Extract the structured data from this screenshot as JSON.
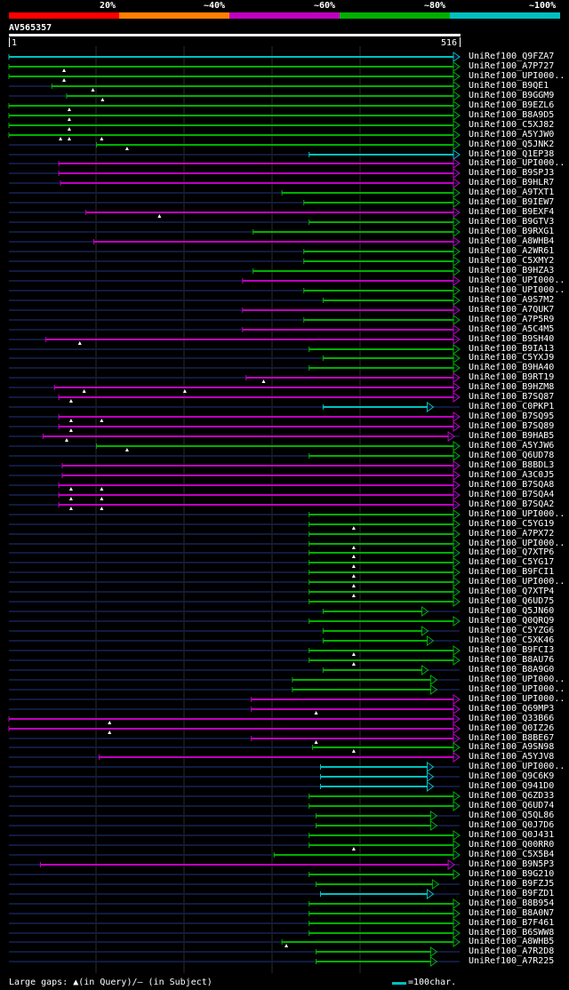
{
  "legend": {
    "labels": [
      "20%",
      "~40%",
      "~60%",
      "~80%",
      "~100%"
    ],
    "colors": [
      "#ff0000",
      "#ff8000",
      "#c000c0",
      "#00b000",
      "#00c0c0"
    ]
  },
  "query": {
    "name": "AV565357",
    "start": "1",
    "end": "516",
    "length": 516
  },
  "footer": {
    "gaps_text": "Large gaps: ▲(in Query)/– (in Subject)",
    "scale_text": "=100char."
  },
  "hits": [
    {
      "label": "UniRef100_Q9FZA7",
      "start": 1,
      "end": 516,
      "c": 4,
      "arrow": true,
      "gaps": []
    },
    {
      "label": "UniRef100_A7P727",
      "start": 1,
      "end": 516,
      "c": 3,
      "arrow": true,
      "gaps": [
        64
      ]
    },
    {
      "label": "UniRef100_UPI000..",
      "start": 1,
      "end": 516,
      "c": 3,
      "arrow": true,
      "gaps": [
        64
      ]
    },
    {
      "label": "UniRef100_B9QE1",
      "start": 50,
      "end": 516,
      "c": 3,
      "arrow": true,
      "gaps": [
        97
      ]
    },
    {
      "label": "UniRef100_B9GGM9",
      "start": 67,
      "end": 516,
      "c": 3,
      "arrow": true,
      "gaps": [
        108
      ]
    },
    {
      "label": "UniRef100_B9EZL6",
      "start": 1,
      "end": 516,
      "c": 3,
      "arrow": true,
      "gaps": [
        70
      ]
    },
    {
      "label": "UniRef100_B8A9D5",
      "start": 1,
      "end": 516,
      "c": 3,
      "arrow": true,
      "gaps": [
        70
      ]
    },
    {
      "label": "UniRef100_C5XJ82",
      "start": 1,
      "end": 516,
      "c": 3,
      "arrow": true,
      "gaps": [
        70
      ]
    },
    {
      "label": "UniRef100_A5YJW0",
      "start": 1,
      "end": 516,
      "c": 3,
      "arrow": true,
      "gaps": [
        60,
        70,
        107
      ]
    },
    {
      "label": "UniRef100_Q5JNK2",
      "start": 101,
      "end": 516,
      "c": 3,
      "arrow": true,
      "gaps": [
        136
      ]
    },
    {
      "label": "UniRef100_Q1EP38",
      "start": 344,
      "end": 516,
      "c": 4,
      "arrow": true,
      "gaps": []
    },
    {
      "label": "UniRef100_UPI000..",
      "start": 58,
      "end": 516,
      "c": 2,
      "arrow": true,
      "gaps": []
    },
    {
      "label": "UniRef100_B9SPJ3",
      "start": 58,
      "end": 516,
      "c": 2,
      "arrow": true,
      "gaps": []
    },
    {
      "label": "UniRef100_B9HLR7",
      "start": 60,
      "end": 516,
      "c": 2,
      "arrow": true,
      "gaps": []
    },
    {
      "label": "UniRef100_A9TXT1",
      "start": 313,
      "end": 516,
      "c": 3,
      "arrow": true,
      "gaps": []
    },
    {
      "label": "UniRef100_B9IEW7",
      "start": 338,
      "end": 516,
      "c": 3,
      "arrow": true,
      "gaps": []
    },
    {
      "label": "UniRef100_B9EXF4",
      "start": 89,
      "end": 516,
      "c": 2,
      "arrow": true,
      "gaps": [
        173
      ]
    },
    {
      "label": "UniRef100_B9GTV3",
      "start": 344,
      "end": 516,
      "c": 3,
      "arrow": true,
      "gaps": []
    },
    {
      "label": "UniRef100_B9RXG1",
      "start": 280,
      "end": 516,
      "c": 3,
      "arrow": true,
      "gaps": []
    },
    {
      "label": "UniRef100_A8WHB4",
      "start": 98,
      "end": 516,
      "c": 2,
      "arrow": true,
      "gaps": []
    },
    {
      "label": "UniRef100_A2WR61",
      "start": 338,
      "end": 516,
      "c": 3,
      "arrow": true,
      "gaps": []
    },
    {
      "label": "UniRef100_C5XMY2",
      "start": 338,
      "end": 516,
      "c": 3,
      "arrow": true,
      "gaps": []
    },
    {
      "label": "UniRef100_B9HZA3",
      "start": 280,
      "end": 516,
      "c": 3,
      "arrow": true,
      "gaps": []
    },
    {
      "label": "UniRef100_UPI000..",
      "start": 268,
      "end": 516,
      "c": 2,
      "arrow": true,
      "gaps": []
    },
    {
      "label": "UniRef100_UPI000..",
      "start": 338,
      "end": 516,
      "c": 3,
      "arrow": true,
      "gaps": []
    },
    {
      "label": "UniRef100_A9S7M2",
      "start": 360,
      "end": 516,
      "c": 3,
      "arrow": true,
      "gaps": []
    },
    {
      "label": "UniRef100_A7QUK7",
      "start": 268,
      "end": 516,
      "c": 2,
      "arrow": true,
      "gaps": []
    },
    {
      "label": "UniRef100_A7P5R9",
      "start": 338,
      "end": 516,
      "c": 3,
      "arrow": true,
      "gaps": []
    },
    {
      "label": "UniRef100_A5C4M5",
      "start": 268,
      "end": 516,
      "c": 2,
      "arrow": true,
      "gaps": []
    },
    {
      "label": "UniRef100_B9SH40",
      "start": 43,
      "end": 516,
      "c": 2,
      "arrow": true,
      "gaps": [
        82
      ]
    },
    {
      "label": "UniRef100_B9IA13",
      "start": 344,
      "end": 516,
      "c": 3,
      "arrow": true,
      "gaps": []
    },
    {
      "label": "UniRef100_C5YXJ9",
      "start": 360,
      "end": 516,
      "c": 3,
      "arrow": true,
      "gaps": []
    },
    {
      "label": "UniRef100_B9HA40",
      "start": 344,
      "end": 516,
      "c": 3,
      "arrow": true,
      "gaps": []
    },
    {
      "label": "UniRef100_B9RT19",
      "start": 272,
      "end": 516,
      "c": 2,
      "arrow": true,
      "gaps": [
        292
      ]
    },
    {
      "label": "UniRef100_B9HZM8",
      "start": 53,
      "end": 516,
      "c": 2,
      "arrow": true,
      "gaps": [
        87,
        202
      ]
    },
    {
      "label": "UniRef100_B7SQ87",
      "start": 58,
      "end": 516,
      "c": 2,
      "arrow": true,
      "gaps": [
        72
      ]
    },
    {
      "label": "UniRef100_C0PKP1",
      "start": 360,
      "end": 486,
      "c": 4,
      "arrow": true,
      "gaps": []
    },
    {
      "label": "UniRef100_B7SQ95",
      "start": 58,
      "end": 516,
      "c": 2,
      "arrow": true,
      "gaps": [
        72,
        107
      ]
    },
    {
      "label": "UniRef100_B7SQ89",
      "start": 58,
      "end": 516,
      "c": 2,
      "arrow": true,
      "gaps": [
        72
      ]
    },
    {
      "label": "UniRef100_B9HAB5",
      "start": 40,
      "end": 510,
      "c": 2,
      "arrow": true,
      "gaps": [
        67
      ]
    },
    {
      "label": "UniRef100_A5YJW6",
      "start": 101,
      "end": 516,
      "c": 3,
      "arrow": true,
      "gaps": [
        136
      ]
    },
    {
      "label": "UniRef100_Q6UD78",
      "start": 344,
      "end": 516,
      "c": 3,
      "arrow": true,
      "gaps": []
    },
    {
      "label": "UniRef100_B8BDL3",
      "start": 62,
      "end": 516,
      "c": 2,
      "arrow": true,
      "gaps": []
    },
    {
      "label": "UniRef100_A3C0J5",
      "start": 62,
      "end": 516,
      "c": 2,
      "arrow": true,
      "gaps": []
    },
    {
      "label": "UniRef100_B7SQA8",
      "start": 58,
      "end": 516,
      "c": 2,
      "arrow": true,
      "gaps": [
        72,
        107
      ]
    },
    {
      "label": "UniRef100_B7SQA4",
      "start": 58,
      "end": 516,
      "c": 2,
      "arrow": true,
      "gaps": [
        72,
        107
      ]
    },
    {
      "label": "UniRef100_B7SQA2",
      "start": 58,
      "end": 516,
      "c": 2,
      "arrow": true,
      "gaps": [
        72,
        107
      ]
    },
    {
      "label": "UniRef100_UPI000..",
      "start": 344,
      "end": 516,
      "c": 3,
      "arrow": true,
      "gaps": []
    },
    {
      "label": "UniRef100_C5YG19",
      "start": 344,
      "end": 516,
      "c": 3,
      "arrow": true,
      "gaps": [
        395
      ]
    },
    {
      "label": "UniRef100_A7PX72",
      "start": 344,
      "end": 516,
      "c": 3,
      "arrow": true,
      "gaps": []
    },
    {
      "label": "UniRef100_UPI000..",
      "start": 344,
      "end": 516,
      "c": 3,
      "arrow": true,
      "gaps": [
        395
      ]
    },
    {
      "label": "UniRef100_Q7XTP6",
      "start": 344,
      "end": 516,
      "c": 3,
      "arrow": true,
      "gaps": [
        395
      ]
    },
    {
      "label": "UniRef100_C5YG17",
      "start": 344,
      "end": 516,
      "c": 3,
      "arrow": true,
      "gaps": [
        395
      ]
    },
    {
      "label": "UniRef100_B9FCI1",
      "start": 344,
      "end": 516,
      "c": 3,
      "arrow": true,
      "gaps": [
        395
      ]
    },
    {
      "label": "UniRef100_UPI000..",
      "start": 344,
      "end": 516,
      "c": 3,
      "arrow": true,
      "gaps": [
        395
      ]
    },
    {
      "label": "UniRef100_Q7XTP4",
      "start": 344,
      "end": 516,
      "c": 3,
      "arrow": true,
      "gaps": [
        395
      ]
    },
    {
      "label": "UniRef100_Q6UD75",
      "start": 344,
      "end": 516,
      "c": 3,
      "arrow": true,
      "gaps": []
    },
    {
      "label": "UniRef100_Q5JN60",
      "start": 360,
      "end": 480,
      "c": 3,
      "arrow": true,
      "gaps": []
    },
    {
      "label": "UniRef100_Q0QRQ9",
      "start": 344,
      "end": 516,
      "c": 3,
      "arrow": true,
      "gaps": []
    },
    {
      "label": "UniRef100_C5YZG6",
      "start": 360,
      "end": 480,
      "c": 3,
      "arrow": true,
      "gaps": []
    },
    {
      "label": "UniRef100_C5XK46",
      "start": 360,
      "end": 486,
      "c": 3,
      "arrow": true,
      "gaps": []
    },
    {
      "label": "UniRef100_B9FCI3",
      "start": 344,
      "end": 516,
      "c": 3,
      "arrow": true,
      "gaps": [
        395
      ]
    },
    {
      "label": "UniRef100_B8AU76",
      "start": 344,
      "end": 516,
      "c": 3,
      "arrow": true,
      "gaps": [
        395
      ]
    },
    {
      "label": "UniRef100_B8A9G0",
      "start": 360,
      "end": 480,
      "c": 3,
      "arrow": true,
      "gaps": []
    },
    {
      "label": "UniRef100_UPI000..",
      "start": 325,
      "end": 490,
      "c": 3,
      "arrow": true,
      "gaps": []
    },
    {
      "label": "UniRef100_UPI000..",
      "start": 325,
      "end": 490,
      "c": 3,
      "arrow": true,
      "gaps": []
    },
    {
      "label": "UniRef100_UPI000..",
      "start": 278,
      "end": 516,
      "c": 2,
      "arrow": true,
      "gaps": []
    },
    {
      "label": "UniRef100_Q69MP3",
      "start": 278,
      "end": 516,
      "c": 2,
      "arrow": true,
      "gaps": [
        352
      ]
    },
    {
      "label": "UniRef100_Q33B66",
      "start": 1,
      "end": 516,
      "c": 2,
      "arrow": true,
      "gaps": [
        116
      ]
    },
    {
      "label": "UniRef100_Q0IZ26",
      "start": 1,
      "end": 516,
      "c": 2,
      "arrow": true,
      "gaps": [
        116
      ]
    },
    {
      "label": "UniRef100_B8BE67",
      "start": 278,
      "end": 516,
      "c": 2,
      "arrow": true,
      "gaps": [
        352
      ]
    },
    {
      "label": "UniRef100_A9SN98",
      "start": 348,
      "end": 516,
      "c": 3,
      "arrow": true,
      "gaps": [
        395
      ]
    },
    {
      "label": "UniRef100_A5YJV8",
      "start": 104,
      "end": 516,
      "c": 2,
      "arrow": true,
      "gaps": []
    },
    {
      "label": "UniRef100_UPI000..",
      "start": 357,
      "end": 486,
      "c": 4,
      "arrow": true,
      "gaps": []
    },
    {
      "label": "UniRef100_Q9C6K9",
      "start": 357,
      "end": 486,
      "c": 4,
      "arrow": true,
      "gaps": []
    },
    {
      "label": "UniRef100_Q941D0",
      "start": 357,
      "end": 486,
      "c": 4,
      "arrow": true,
      "gaps": []
    },
    {
      "label": "UniRef100_Q6ZD33",
      "start": 344,
      "end": 516,
      "c": 3,
      "arrow": true,
      "gaps": []
    },
    {
      "label": "UniRef100_Q6UD74",
      "start": 344,
      "end": 516,
      "c": 3,
      "arrow": true,
      "gaps": []
    },
    {
      "label": "UniRef100_Q5QL86",
      "start": 352,
      "end": 490,
      "c": 3,
      "arrow": true,
      "gaps": []
    },
    {
      "label": "UniRef100_Q0J7D6",
      "start": 352,
      "end": 490,
      "c": 3,
      "arrow": true,
      "gaps": []
    },
    {
      "label": "UniRef100_Q0J431",
      "start": 344,
      "end": 516,
      "c": 3,
      "arrow": true,
      "gaps": []
    },
    {
      "label": "UniRef100_Q00RR0",
      "start": 344,
      "end": 516,
      "c": 3,
      "arrow": true,
      "gaps": [
        395
      ]
    },
    {
      "label": "UniRef100_C5X5B4",
      "start": 304,
      "end": 516,
      "c": 3,
      "arrow": true,
      "gaps": []
    },
    {
      "label": "UniRef100_B9N5P3",
      "start": 37,
      "end": 510,
      "c": 2,
      "arrow": true,
      "gaps": []
    },
    {
      "label": "UniRef100_B9G210",
      "start": 344,
      "end": 516,
      "c": 3,
      "arrow": true,
      "gaps": []
    },
    {
      "label": "UniRef100_B9FZJ5",
      "start": 352,
      "end": 492,
      "c": 3,
      "arrow": true,
      "gaps": []
    },
    {
      "label": "UniRef100_B9FZD1",
      "start": 357,
      "end": 486,
      "c": 4,
      "arrow": true,
      "gaps": []
    },
    {
      "label": "UniRef100_B8B954",
      "start": 344,
      "end": 516,
      "c": 3,
      "arrow": true,
      "gaps": []
    },
    {
      "label": "UniRef100_B8A0N7",
      "start": 344,
      "end": 516,
      "c": 3,
      "arrow": true,
      "gaps": []
    },
    {
      "label": "UniRef100_B7F461",
      "start": 344,
      "end": 516,
      "c": 3,
      "arrow": true,
      "gaps": []
    },
    {
      "label": "UniRef100_B6SWW8",
      "start": 344,
      "end": 516,
      "c": 3,
      "arrow": true,
      "gaps": []
    },
    {
      "label": "UniRef100_A8WHB5",
      "start": 313,
      "end": 516,
      "c": 3,
      "arrow": true,
      "gaps": [
        318
      ]
    },
    {
      "label": "UniRef100_A7R2D8",
      "start": 352,
      "end": 490,
      "c": 3,
      "arrow": true,
      "gaps": []
    },
    {
      "label": "UniRef100_A7R225",
      "start": 352,
      "end": 490,
      "c": 3,
      "arrow": true,
      "gaps": []
    }
  ]
}
